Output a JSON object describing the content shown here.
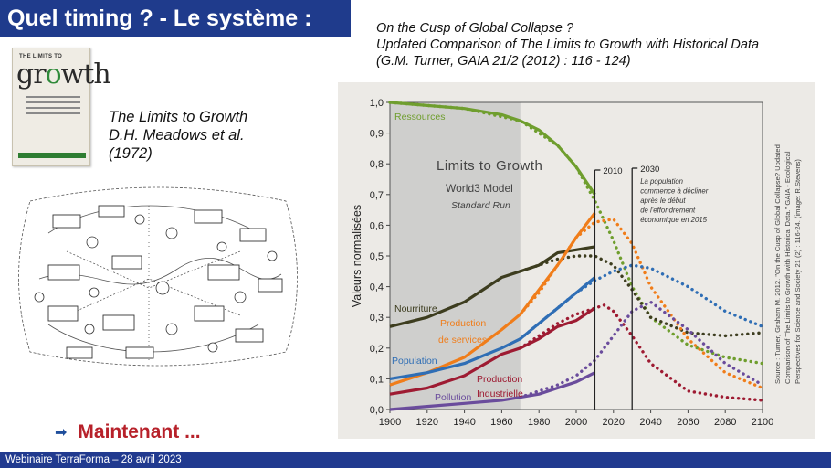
{
  "slide": {
    "title": "Quel timing ? - Le système :",
    "article_lines": [
      "On the Cusp of Global Collapse ?",
      "Updated Comparison of The Limits to Growth with Historical Data",
      "(G.M. Turner, GAIA 21/2 (2012) : 116 - 124)"
    ],
    "book_lines": [
      "The Limits to Growth",
      "D.H. Meadows et al.",
      "(1972)"
    ],
    "book_cover": {
      "top_text": "THE LIMITS TO",
      "big_text_a": "gr",
      "big_text_o": "o",
      "big_text_b": "wth"
    },
    "maintenant": "Maintenant ...",
    "footer": "Webinaire TerraForma – 28 avril 2023"
  },
  "colors": {
    "title_bg": "#1f3b8c",
    "footer_bg": "#213a8f",
    "accent_red": "#b7212a"
  },
  "chart_data": {
    "type": "line",
    "ylabel": "Valeurs normalisées",
    "xlim": [
      1900,
      2100
    ],
    "ylim": [
      0,
      1
    ],
    "x_ticks": [
      1900,
      1920,
      1940,
      1960,
      1980,
      2000,
      2020,
      2040,
      2060,
      2080,
      2100
    ],
    "y_ticks": [
      "0,0",
      "0,1",
      "0,2",
      "0,3",
      "0,4",
      "0,5",
      "0,6",
      "0,7",
      "0,8",
      "0,9",
      "1,0"
    ],
    "box_lines": [
      "Limits to Growth",
      "World3 Model",
      "Standard Run"
    ],
    "markers": [
      {
        "year": 2010,
        "label": "2010"
      },
      {
        "year": 2030,
        "label": "2030",
        "note": [
          "La population",
          "commence à décliner",
          "après le début",
          "de l'effondrement",
          "économique en 2015"
        ]
      }
    ],
    "shaded_until": 1970,
    "source_lines": [
      "Source : Turner, Graham M. 2012. \"On the Cusp of Global Collapse? Updated",
      "Comparison of The Limits to Growth with Historical Data.\" GAIA - Ecological",
      "Perspectives for Science and Society 21 (2) : 116-24. (image: R.Stevens)"
    ],
    "series": [
      {
        "name": "Ressources",
        "color": "#6f9e2e",
        "historical": [
          [
            1900,
            1.0
          ],
          [
            1920,
            0.99
          ],
          [
            1940,
            0.98
          ],
          [
            1960,
            0.96
          ],
          [
            1970,
            0.94
          ],
          [
            1980,
            0.91
          ],
          [
            1990,
            0.86
          ],
          [
            2000,
            0.79
          ],
          [
            2010,
            0.7
          ]
        ],
        "model": [
          [
            1900,
            1.0
          ],
          [
            1940,
            0.98
          ],
          [
            1970,
            0.94
          ],
          [
            1990,
            0.86
          ],
          [
            2000,
            0.79
          ],
          [
            2010,
            0.68
          ],
          [
            2020,
            0.55
          ],
          [
            2030,
            0.4
          ],
          [
            2040,
            0.3
          ],
          [
            2060,
            0.21
          ],
          [
            2080,
            0.17
          ],
          [
            2100,
            0.15
          ]
        ]
      },
      {
        "name": "Nourriture",
        "color": "#3d3d1f",
        "historical": [
          [
            1900,
            0.27
          ],
          [
            1920,
            0.3
          ],
          [
            1940,
            0.35
          ],
          [
            1960,
            0.43
          ],
          [
            1970,
            0.45
          ],
          [
            1980,
            0.47
          ],
          [
            1990,
            0.51
          ],
          [
            2000,
            0.52
          ],
          [
            2010,
            0.53
          ]
        ],
        "model": [
          [
            1970,
            0.45
          ],
          [
            1980,
            0.47
          ],
          [
            1990,
            0.49
          ],
          [
            2000,
            0.5
          ],
          [
            2010,
            0.5
          ],
          [
            2020,
            0.47
          ],
          [
            2030,
            0.39
          ],
          [
            2040,
            0.3
          ],
          [
            2060,
            0.25
          ],
          [
            2080,
            0.24
          ],
          [
            2100,
            0.25
          ]
        ]
      },
      {
        "name": "Production de services",
        "color": "#f07d1a",
        "historical": [
          [
            1900,
            0.08
          ],
          [
            1920,
            0.12
          ],
          [
            1940,
            0.17
          ],
          [
            1960,
            0.26
          ],
          [
            1970,
            0.31
          ],
          [
            1980,
            0.39
          ],
          [
            1990,
            0.47
          ],
          [
            2000,
            0.56
          ],
          [
            2010,
            0.64
          ]
        ],
        "model": [
          [
            1970,
            0.31
          ],
          [
            1980,
            0.38
          ],
          [
            1990,
            0.47
          ],
          [
            2000,
            0.56
          ],
          [
            2010,
            0.61
          ],
          [
            2020,
            0.62
          ],
          [
            2030,
            0.54
          ],
          [
            2040,
            0.4
          ],
          [
            2060,
            0.23
          ],
          [
            2080,
            0.12
          ],
          [
            2100,
            0.07
          ]
        ]
      },
      {
        "name": "Population",
        "color": "#2f6eb5",
        "historical": [
          [
            1900,
            0.1
          ],
          [
            1920,
            0.12
          ],
          [
            1940,
            0.15
          ],
          [
            1960,
            0.2
          ],
          [
            1970,
            0.23
          ],
          [
            1980,
            0.28
          ],
          [
            1990,
            0.33
          ],
          [
            2000,
            0.38
          ],
          [
            2010,
            0.43
          ]
        ],
        "model": [
          [
            1970,
            0.23
          ],
          [
            1980,
            0.28
          ],
          [
            1990,
            0.33
          ],
          [
            2000,
            0.38
          ],
          [
            2010,
            0.42
          ],
          [
            2020,
            0.45
          ],
          [
            2030,
            0.47
          ],
          [
            2040,
            0.46
          ],
          [
            2060,
            0.4
          ],
          [
            2080,
            0.32
          ],
          [
            2100,
            0.27
          ]
        ]
      },
      {
        "name": "Production industrielle",
        "color": "#9e1b32",
        "historical": [
          [
            1900,
            0.05
          ],
          [
            1920,
            0.07
          ],
          [
            1940,
            0.11
          ],
          [
            1960,
            0.18
          ],
          [
            1970,
            0.2
          ],
          [
            1980,
            0.23
          ],
          [
            1990,
            0.27
          ],
          [
            2000,
            0.29
          ],
          [
            2010,
            0.33
          ]
        ],
        "model": [
          [
            1970,
            0.2
          ],
          [
            1980,
            0.24
          ],
          [
            1990,
            0.28
          ],
          [
            2000,
            0.31
          ],
          [
            2010,
            0.33
          ],
          [
            2015,
            0.34
          ],
          [
            2020,
            0.32
          ],
          [
            2030,
            0.24
          ],
          [
            2040,
            0.15
          ],
          [
            2060,
            0.06
          ],
          [
            2080,
            0.04
          ],
          [
            2100,
            0.03
          ]
        ]
      },
      {
        "name": "Pollution",
        "color": "#6a4c9c",
        "historical": [
          [
            1900,
            0.0
          ],
          [
            1920,
            0.01
          ],
          [
            1940,
            0.02
          ],
          [
            1960,
            0.03
          ],
          [
            1970,
            0.04
          ],
          [
            1980,
            0.05
          ],
          [
            1990,
            0.07
          ],
          [
            2000,
            0.09
          ],
          [
            2010,
            0.12
          ]
        ],
        "model": [
          [
            1970,
            0.04
          ],
          [
            1980,
            0.06
          ],
          [
            1990,
            0.08
          ],
          [
            2000,
            0.11
          ],
          [
            2010,
            0.16
          ],
          [
            2020,
            0.24
          ],
          [
            2030,
            0.32
          ],
          [
            2040,
            0.35
          ],
          [
            2060,
            0.26
          ],
          [
            2080,
            0.15
          ],
          [
            2100,
            0.08
          ]
        ]
      }
    ],
    "series_labels": [
      {
        "series": "Ressources",
        "lines": [
          "Ressources"
        ]
      },
      {
        "series": "Nourriture",
        "lines": [
          "Nourriture"
        ]
      },
      {
        "series": "Production de services",
        "lines": [
          "Production",
          "de services"
        ]
      },
      {
        "series": "Population",
        "lines": [
          "Population"
        ]
      },
      {
        "series": "Production industrielle",
        "lines": [
          "Production",
          "Industrielle"
        ]
      },
      {
        "series": "Pollution",
        "lines": [
          "Pollution"
        ]
      }
    ]
  }
}
